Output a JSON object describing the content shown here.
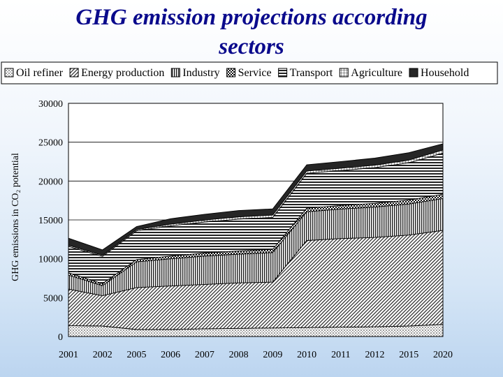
{
  "slide": {
    "title": "GHG emission projections according\nsectors"
  },
  "chart_data": {
    "type": "area",
    "stacked": true,
    "categories": [
      "2001",
      "2002",
      "2005",
      "2006",
      "2007",
      "2008",
      "2009",
      "2010",
      "2011",
      "2012",
      "2015",
      "2020"
    ],
    "ylabel": "GHG emissions in CO₂ potential",
    "ylim": [
      0,
      30000
    ],
    "yticks": [
      0,
      5000,
      10000,
      15000,
      20000,
      25000,
      30000
    ],
    "grid": true,
    "legend_position": "top",
    "series": [
      {
        "name": "Oil refiner",
        "pattern": "dots",
        "values": [
          1400,
          1350,
          900,
          900,
          1000,
          1050,
          1100,
          1150,
          1200,
          1250,
          1350,
          1550
        ]
      },
      {
        "name": "Energy production",
        "pattern": "diagonal",
        "values": [
          4700,
          3900,
          5400,
          5600,
          5700,
          5850,
          5900,
          11200,
          11400,
          11500,
          11700,
          12100
        ]
      },
      {
        "name": "Industry",
        "pattern": "vertical",
        "values": [
          1800,
          1300,
          3300,
          3500,
          3650,
          3700,
          3800,
          3700,
          3800,
          3900,
          4000,
          4100
        ]
      },
      {
        "name": "Service",
        "pattern": "checker",
        "values": [
          300,
          250,
          300,
          350,
          380,
          400,
          420,
          450,
          460,
          480,
          500,
          550
        ]
      },
      {
        "name": "Transport",
        "pattern": "horizontal",
        "values": [
          3400,
          3500,
          3700,
          3900,
          4000,
          4100,
          4100,
          4500,
          4500,
          4600,
          4800,
          5300
        ]
      },
      {
        "name": "Agriculture",
        "pattern": "grid",
        "values": [
          150,
          150,
          150,
          200,
          250,
          300,
          300,
          300,
          300,
          320,
          350,
          400
        ]
      },
      {
        "name": "Household",
        "pattern": "solid",
        "values": [
          900,
          700,
          400,
          700,
          750,
          800,
          800,
          800,
          850,
          900,
          950,
          800
        ]
      }
    ]
  }
}
